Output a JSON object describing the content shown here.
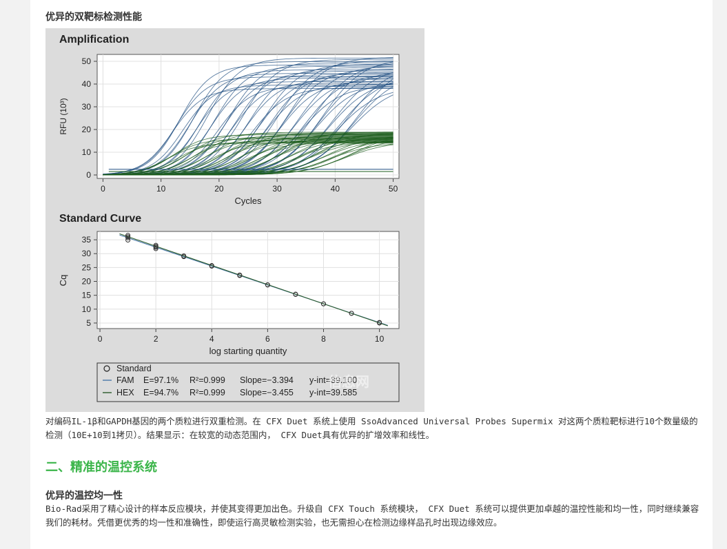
{
  "heading_top": "优异的双靶标检测性能",
  "chart_data": [
    {
      "type": "line",
      "title": "Amplification",
      "xlabel": "Cycles",
      "ylabel": "RFU (10³)",
      "xlim": [
        0,
        50
      ],
      "ylim": [
        0,
        50
      ],
      "x_ticks": [
        "0",
        "10",
        "20",
        "30",
        "40",
        "50"
      ],
      "y_ticks": [
        "0",
        "10",
        "20",
        "30",
        "40",
        "50"
      ],
      "grid": true,
      "series_groups": [
        {
          "color": "#1f4e80",
          "plateau_range": [
            38,
            52
          ],
          "threshold_cycles": [
            10,
            13,
            16,
            19,
            22,
            25,
            28,
            31,
            34,
            37,
            40
          ]
        },
        {
          "color": "#1e5e1e",
          "plateau_range": [
            14,
            19
          ],
          "threshold_cycles": [
            9,
            12,
            15,
            18,
            21,
            24,
            27,
            30,
            33,
            36,
            39
          ]
        }
      ]
    },
    {
      "type": "scatter",
      "title": "Standard Curve",
      "xlabel": "log starting quantity",
      "ylabel": "Cq",
      "xlim": [
        0,
        10.7
      ],
      "ylim": [
        3,
        38
      ],
      "x_ticks": [
        "0",
        "2",
        "4",
        "6",
        "8",
        "10"
      ],
      "y_ticks": [
        "5",
        "10",
        "15",
        "20",
        "25",
        "30",
        "35"
      ],
      "grid": true,
      "x": [
        1,
        2,
        3,
        4,
        5,
        6,
        7,
        8,
        9,
        10
      ],
      "series": [
        {
          "values": [
            35.7,
            32.3,
            28.9,
            25.5,
            22.1,
            18.7,
            15.3,
            11.9,
            8.5,
            5.2
          ]
        },
        {
          "values": [
            36.1,
            32.6,
            29.2,
            25.7,
            22.3,
            18.8,
            15.4,
            11.9,
            8.5,
            5.0
          ]
        }
      ],
      "legend": {
        "position": "bottom",
        "entries": [
          {
            "symbol": "circle",
            "label": "Standard"
          },
          {
            "symbol": "line",
            "color": "#4a78a8",
            "name": "FAM",
            "e": "E=97.1%",
            "r2": "R²=0.999",
            "slope": "Slope=−3.394",
            "yint": "y-int=39.100"
          },
          {
            "symbol": "line",
            "color": "#2a5a2a",
            "name": "HEX",
            "e": "E=94.7%",
            "r2": "R²=0.999",
            "slope": "Slope=−3.455",
            "yint": "y-int=39.585"
          }
        ]
      },
      "fit_lines": [
        {
          "color": "#4a78a8",
          "slope": -3.394,
          "intercept": 39.1
        },
        {
          "color": "#2a5a2a",
          "slope": -3.455,
          "intercept": 39.585
        }
      ]
    }
  ],
  "watermark": "信息网",
  "caption": "对编码IL-1β和GAPDH基因的两个质粒进行双重检测。在 CFX Duet 系统上使用 SsoAdvanced Universal Probes Supermix 对这两个质粒靶标进行10个数量级的检测（10E+10到1拷贝）。结果显示：在较宽的动态范围内， CFX Duet具有优异的扩增效率和线性。",
  "section_title": "二、精准的温控系统",
  "subheading": "优异的温控均一性",
  "body_text": "Bio-Rad采用了精心设计的样本反应模块，并使其变得更加出色。升级自 CFX Touch 系统模块， CFX Duet 系统可以提供更加卓越的温控性能和均一性，同时继续兼容我们的耗材。凭借更优秀的均一性和准确性，即使运行高灵敏检测实验，也无需担心在检测边缘样品孔时出现边缘效应。"
}
